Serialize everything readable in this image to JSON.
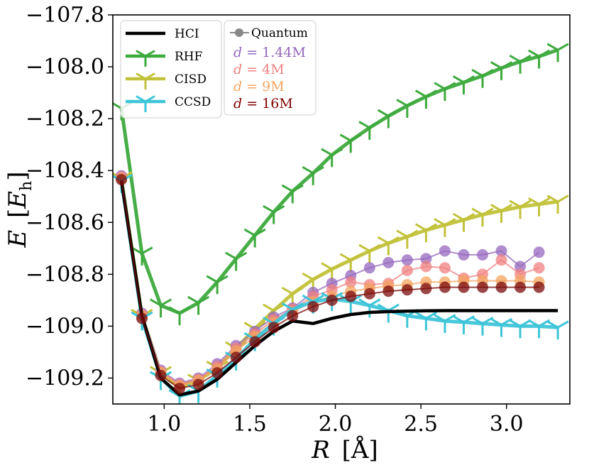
{
  "chart_data": {
    "type": "line",
    "xlabel": {
      "symbol": "R",
      "unit": "Å"
    },
    "ylabel": {
      "symbol": "E",
      "unit_base": "E",
      "unit_sub": "h"
    },
    "xlim": [
      0.7,
      3.37
    ],
    "ylim": [
      -109.3,
      -107.8
    ],
    "x_ticks": [
      1.0,
      1.5,
      2.0,
      2.5,
      3.0
    ],
    "x_tick_labels": [
      "1.0",
      "1.5",
      "2.0",
      "2.5",
      "3.0"
    ],
    "y_ticks": [
      -107.8,
      -108.0,
      -108.2,
      -108.4,
      -108.6,
      -108.8,
      -109.0,
      -109.2
    ],
    "y_tick_labels": [
      "−107.8",
      "−108.0",
      "−108.2",
      "−108.4",
      "−108.6",
      "−108.8",
      "−109.0",
      "−109.2"
    ],
    "grid": false,
    "legend_left": {
      "placement": "top-left",
      "entries": [
        "HCI",
        "RHF",
        "CISD",
        "CCSD"
      ]
    },
    "legend_right": {
      "placement": "top-left",
      "header": "Quantum",
      "entries": [
        {
          "italic": "d",
          "text": " = 1.44M",
          "color": "#9467bd"
        },
        {
          "italic": "d",
          "text": " = 4M",
          "color": "#f08080"
        },
        {
          "italic": "d",
          "text": " = 9M",
          "color": "#f4a460"
        },
        {
          "italic": "d",
          "text": " = 16M",
          "color": "#800000"
        }
      ]
    },
    "series": [
      {
        "name": "HCI",
        "style": "line",
        "color": "#000000",
        "x": [
          0.75,
          0.87,
          0.98,
          1.09,
          1.2,
          1.31,
          1.42,
          1.53,
          1.64,
          1.75,
          1.87,
          1.98,
          2.09,
          2.2,
          2.31,
          2.42,
          2.53,
          2.64,
          2.75,
          2.86,
          2.97,
          3.08,
          3.19,
          3.3
        ],
        "y": [
          -108.44,
          -108.96,
          -109.2,
          -109.265,
          -109.25,
          -109.205,
          -109.14,
          -109.075,
          -109.02,
          -108.98,
          -108.99,
          -108.97,
          -108.955,
          -108.947,
          -108.944,
          -108.942,
          -108.941,
          -108.94,
          -108.94,
          -108.94,
          -108.94,
          -108.94,
          -108.94,
          -108.94
        ]
      },
      {
        "name": "RHF",
        "style": "tri_down",
        "color": "#3daa3d",
        "x": [
          0.75,
          0.87,
          0.98,
          1.09,
          1.2,
          1.31,
          1.42,
          1.53,
          1.64,
          1.75,
          1.87,
          1.98,
          2.09,
          2.2,
          2.31,
          2.42,
          2.53,
          2.64,
          2.75,
          2.86,
          2.97,
          3.08,
          3.19,
          3.3
        ],
        "y": [
          -108.16,
          -108.72,
          -108.92,
          -108.95,
          -108.91,
          -108.83,
          -108.74,
          -108.65,
          -108.56,
          -108.48,
          -108.41,
          -108.34,
          -108.285,
          -108.235,
          -108.19,
          -108.15,
          -108.115,
          -108.085,
          -108.06,
          -108.035,
          -108.005,
          -107.98,
          -107.96,
          -107.935
        ]
      },
      {
        "name": "CISD",
        "style": "tri_down",
        "color": "#c2c23a",
        "x": [
          0.75,
          0.87,
          0.98,
          1.09,
          1.2,
          1.31,
          1.42,
          1.53,
          1.64,
          1.75,
          1.87,
          1.98,
          2.09,
          2.2,
          2.31,
          2.42,
          2.53,
          2.64,
          2.75,
          2.86,
          2.97,
          3.08,
          3.19,
          3.3
        ],
        "y": [
          -108.43,
          -108.96,
          -109.18,
          -109.235,
          -109.21,
          -109.16,
          -109.085,
          -109.01,
          -108.94,
          -108.875,
          -108.82,
          -108.78,
          -108.745,
          -108.71,
          -108.68,
          -108.655,
          -108.63,
          -108.61,
          -108.59,
          -108.57,
          -108.555,
          -108.54,
          -108.53,
          -108.52
        ]
      },
      {
        "name": "CCSD",
        "style": "tri_down",
        "color": "#3ec5d8",
        "x": [
          0.75,
          0.87,
          0.98,
          1.09,
          1.2,
          1.31,
          1.42,
          1.53,
          1.64,
          1.75,
          1.87,
          1.98,
          2.09,
          2.2,
          2.31,
          2.42,
          2.53,
          2.64,
          2.75,
          2.86,
          2.97,
          3.08,
          3.19,
          3.3
        ],
        "y": [
          -108.44,
          -108.97,
          -109.2,
          -109.27,
          -109.25,
          -109.19,
          -109.125,
          -109.05,
          -108.99,
          -108.935,
          -108.905,
          -108.895,
          -108.905,
          -108.92,
          -108.94,
          -108.96,
          -108.97,
          -108.98,
          -108.985,
          -108.99,
          -108.995,
          -109.0,
          -109.0,
          -109.005
        ]
      },
      {
        "name": "d = 1.44M",
        "style": "circle",
        "color": "#9467bd",
        "x": [
          0.75,
          0.87,
          0.98,
          1.09,
          1.2,
          1.31,
          1.42,
          1.53,
          1.64,
          1.75,
          1.87,
          1.98,
          2.09,
          2.2,
          2.31,
          2.42,
          2.53,
          2.64,
          2.75,
          2.86,
          2.97,
          3.08,
          3.19
        ],
        "y": [
          -108.42,
          -108.95,
          -109.17,
          -109.22,
          -109.2,
          -109.145,
          -109.075,
          -109.02,
          -108.965,
          -108.93,
          -108.87,
          -108.835,
          -108.805,
          -108.775,
          -108.755,
          -108.745,
          -108.74,
          -108.71,
          -108.725,
          -108.725,
          -108.71,
          -108.77,
          -108.715
        ]
      },
      {
        "name": "d = 4M",
        "style": "circle",
        "color": "#f08080",
        "x": [
          0.75,
          0.87,
          0.98,
          1.09,
          1.2,
          1.31,
          1.42,
          1.53,
          1.64,
          1.75,
          1.87,
          1.98,
          2.09,
          2.2,
          2.31,
          2.42,
          2.53,
          2.64,
          2.75,
          2.86,
          2.97,
          3.08,
          3.19
        ],
        "y": [
          -108.425,
          -108.955,
          -109.175,
          -109.225,
          -109.205,
          -109.155,
          -109.085,
          -109.03,
          -108.975,
          -108.935,
          -108.885,
          -108.86,
          -108.83,
          -108.84,
          -108.835,
          -108.785,
          -108.77,
          -108.775,
          -108.815,
          -108.8,
          -108.745,
          -108.8,
          -108.775
        ]
      },
      {
        "name": "d = 9M",
        "style": "circle",
        "color": "#f4a460",
        "x": [
          0.75,
          0.87,
          0.98,
          1.09,
          1.2,
          1.31,
          1.42,
          1.53,
          1.64,
          1.75,
          1.87,
          1.98,
          2.09,
          2.2,
          2.31,
          2.42,
          2.53,
          2.64,
          2.75,
          2.86,
          2.97,
          3.08,
          3.19
        ],
        "y": [
          -108.43,
          -108.96,
          -109.18,
          -109.23,
          -109.21,
          -109.165,
          -109.095,
          -109.04,
          -108.985,
          -108.945,
          -108.905,
          -108.885,
          -108.865,
          -108.855,
          -108.845,
          -108.84,
          -108.83,
          -108.83,
          -108.825,
          -108.825,
          -108.825,
          -108.825,
          -108.83
        ]
      },
      {
        "name": "d = 16M",
        "style": "circle",
        "color": "#7a0a0a",
        "x": [
          0.75,
          0.87,
          0.98,
          1.09,
          1.2,
          1.31,
          1.42,
          1.53,
          1.64,
          1.75,
          1.87,
          1.98,
          2.09,
          2.2,
          2.31,
          2.42,
          2.53,
          2.64,
          2.75,
          2.86,
          2.97,
          3.08,
          3.19
        ],
        "y": [
          -108.435,
          -108.97,
          -109.19,
          -109.24,
          -109.225,
          -109.18,
          -109.12,
          -109.06,
          -109.005,
          -108.96,
          -108.925,
          -108.9,
          -108.885,
          -108.875,
          -108.865,
          -108.86,
          -108.855,
          -108.85,
          -108.85,
          -108.85,
          -108.85,
          -108.85,
          -108.85
        ]
      }
    ]
  }
}
